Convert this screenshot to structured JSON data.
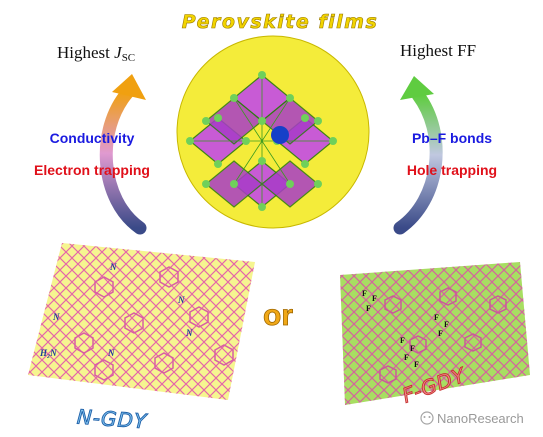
{
  "title": "Perovskite films",
  "left_heading": {
    "prefix": "Highest ",
    "symbol": "J",
    "subscript": "SC"
  },
  "right_heading": "Highest FF",
  "left_properties": [
    "Conductivity",
    "Electron trapping"
  ],
  "right_properties": [
    "Pb–F bonds",
    "Hole trapping"
  ],
  "connector": "or",
  "left_material": "N-GDY",
  "right_material": "F-GDY",
  "left_sheet_labels": [
    "N",
    "N",
    "N",
    "N",
    "N",
    "H₂N"
  ],
  "right_sheet_labels": [
    "F",
    "F",
    "F",
    "F",
    "F",
    "F",
    "F",
    "F",
    "F",
    "F"
  ],
  "watermark": "NanoResearch",
  "colors": {
    "title": "#f2d400",
    "circle_fill": "#f4ec3a",
    "octahedra": "#c44ce6",
    "cation": "#1640c8",
    "blue_text": "#1a1ae0",
    "red_text": "#e0101a",
    "left_sheet": "#f6f590",
    "right_sheet": "#a8de62",
    "connector": "#f0a818",
    "left_label": "#1d5fa8",
    "right_label": "#c63232"
  }
}
